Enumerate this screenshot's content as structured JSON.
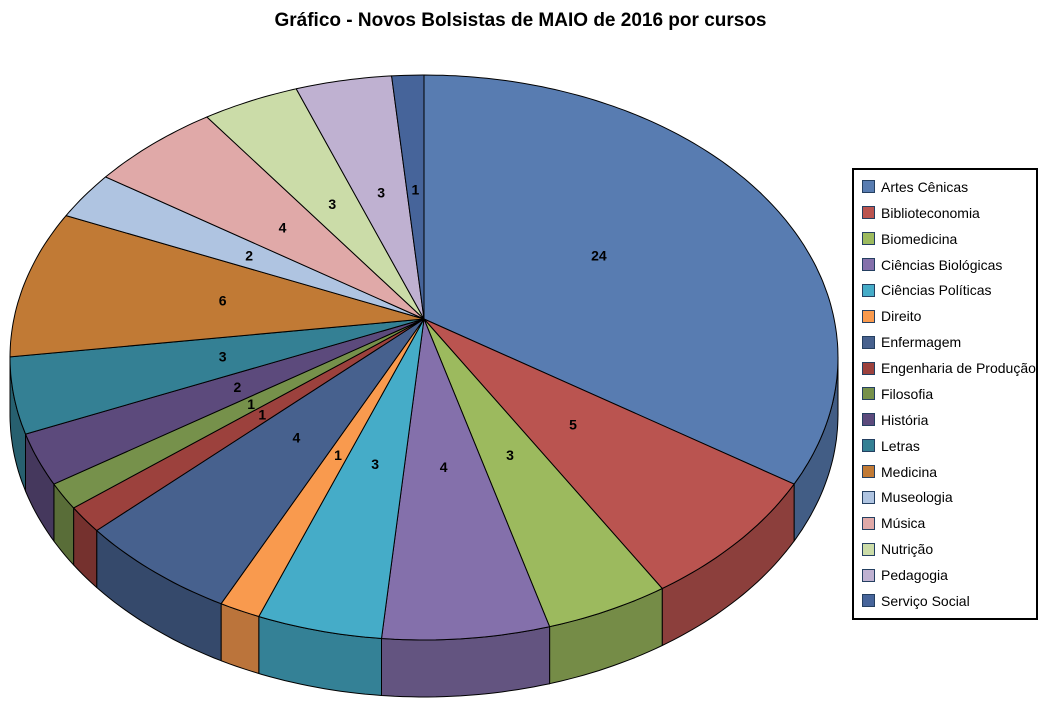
{
  "title": "Gráfico - Novos Bolsistas de MAIO de 2016 por cursos",
  "chart_data": {
    "type": "pie",
    "style": "3d",
    "title": "Gráfico - Novos Bolsistas de MAIO de 2016 por cursos",
    "start_angle_deg": 0,
    "direction": "clockwise",
    "total": 70,
    "labels_shown": "values",
    "legend_position": "right",
    "categories": [
      "Artes Cênicas",
      "Biblioteconomia",
      "Biomedicina",
      "Ciências Biológicas",
      "Ciências Políticas",
      "Direito",
      "Enfermagem",
      "Engenharia de Produção",
      "Filosofia",
      "História",
      "Letras",
      "Medicina",
      "Museologia",
      "Música",
      "Nutrição",
      "Pedagogia",
      "Serviço Social"
    ],
    "values": [
      24,
      5,
      3,
      4,
      3,
      1,
      4,
      1,
      1,
      2,
      3,
      6,
      2,
      4,
      3,
      3,
      1
    ],
    "colors": [
      "#587CB1",
      "#BA5450",
      "#9CBA5E",
      "#8470AB",
      "#45ACC8",
      "#F99A4E",
      "#47618E",
      "#9C413D",
      "#76914B",
      "#5C4A7C",
      "#348094",
      "#C17A35",
      "#AFC4E1",
      "#E0A9A8",
      "#CBDCA8",
      "#BFB1D1",
      "#46649A"
    ],
    "outline_color": "#000000",
    "label_color": "#000000"
  }
}
